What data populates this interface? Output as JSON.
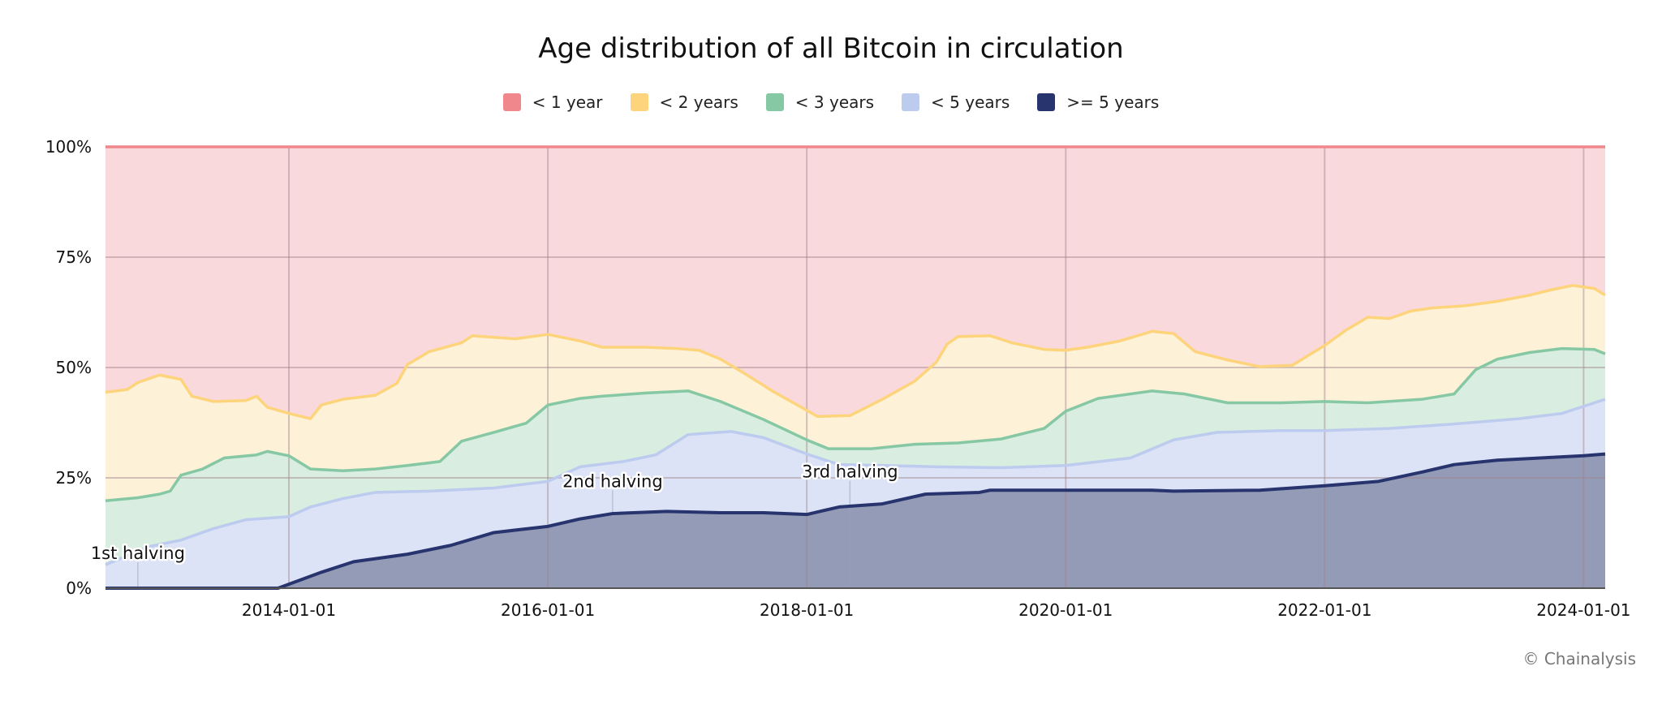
{
  "chart_data": {
    "type": "area",
    "stacking": "percent",
    "title": "Age distribution of all Bitcoin in circulation",
    "xlabel": "",
    "ylabel": "",
    "x_type": "date",
    "xlim": [
      "2012-08",
      "2024-03"
    ],
    "ylim": [
      0,
      100
    ],
    "y_ticks": [
      "0%",
      "25%",
      "50%",
      "75%",
      "100%"
    ],
    "x_ticks": [
      "2014-01-01",
      "2016-01-01",
      "2018-01-01",
      "2020-01-01",
      "2022-01-01",
      "2024-01-01"
    ],
    "grid": true,
    "legend_position": "top-center",
    "legend": [
      {
        "label": "< 1 year",
        "color": "#f0878c",
        "fill": "#f9d9dc"
      },
      {
        "label": "< 2 years",
        "color": "#fdd47c",
        "fill": "#fdf1d8"
      },
      {
        "label": "< 3 years",
        "color": "#86c8a4",
        "fill": "#d9ede1"
      },
      {
        "label": "< 5 years",
        "color": "#bccbee",
        "fill": "#dde3f6"
      },
      {
        "label": ">= 5 years",
        "color": "#27346e",
        "fill": "#949bb7"
      }
    ],
    "series": [
      {
        "name": "< 1 year",
        "points": [
          [
            "2012-08",
            100
          ],
          [
            "2024-03",
            100
          ]
        ]
      },
      {
        "name": "< 2 years",
        "points": [
          [
            "2012-08",
            44.4
          ],
          [
            "2012-10",
            45
          ],
          [
            "2012-11",
            46.6
          ],
          [
            "2013-01",
            48.3
          ],
          [
            "2013-03",
            47.3
          ],
          [
            "2013-04",
            43.5
          ],
          [
            "2013-06",
            42.3
          ],
          [
            "2013-09",
            42.5
          ],
          [
            "2013-10",
            43.5
          ],
          [
            "2013-11",
            41
          ],
          [
            "2014-01",
            39.6
          ],
          [
            "2014-03",
            38.4
          ],
          [
            "2014-04",
            41.5
          ],
          [
            "2014-06",
            42.8
          ],
          [
            "2014-09",
            43.7
          ],
          [
            "2014-11",
            46.4
          ],
          [
            "2014-12",
            50.7
          ],
          [
            "2015-02",
            53.6
          ],
          [
            "2015-05",
            55.6
          ],
          [
            "2015-06",
            57.2
          ],
          [
            "2015-10",
            56.5
          ],
          [
            "2016-01",
            57.5
          ],
          [
            "2016-04",
            56
          ],
          [
            "2016-06",
            54.6
          ],
          [
            "2016-10",
            54.6
          ],
          [
            "2017-01",
            54.3
          ],
          [
            "2017-03",
            53.9
          ],
          [
            "2017-05",
            51.9
          ],
          [
            "2017-07",
            49
          ],
          [
            "2017-10",
            44.4
          ],
          [
            "2018-01",
            40.3
          ],
          [
            "2018-02",
            38.9
          ],
          [
            "2018-05",
            39.1
          ],
          [
            "2018-08",
            42.8
          ],
          [
            "2018-11",
            46.9
          ],
          [
            "2019-01",
            51.2
          ],
          [
            "2019-02",
            55.3
          ],
          [
            "2019-03",
            57
          ],
          [
            "2019-06",
            57.2
          ],
          [
            "2019-08",
            55.6
          ],
          [
            "2019-11",
            54.1
          ],
          [
            "2020-01",
            53.9
          ],
          [
            "2020-03",
            54.6
          ],
          [
            "2020-06",
            56
          ],
          [
            "2020-09",
            58.2
          ],
          [
            "2020-11",
            57.7
          ],
          [
            "2021-01",
            53.6
          ],
          [
            "2021-04",
            51.7
          ],
          [
            "2021-07",
            50.2
          ],
          [
            "2021-10",
            50.5
          ],
          [
            "2022-01",
            55
          ],
          [
            "2022-03",
            58.5
          ],
          [
            "2022-05",
            61.4
          ],
          [
            "2022-07",
            61.1
          ],
          [
            "2022-09",
            62.8
          ],
          [
            "2022-11",
            63.5
          ],
          [
            "2023-02",
            64
          ],
          [
            "2023-05",
            65
          ],
          [
            "2023-08",
            66.4
          ],
          [
            "2023-10",
            67.6
          ],
          [
            "2023-12",
            68.6
          ],
          [
            "2024-02",
            67.9
          ],
          [
            "2024-03",
            66.4
          ]
        ]
      },
      {
        "name": "< 3 years",
        "points": [
          [
            "2012-08",
            19.8
          ],
          [
            "2012-11",
            20.5
          ],
          [
            "2013-01",
            21.3
          ],
          [
            "2013-02",
            22
          ],
          [
            "2013-03",
            25.6
          ],
          [
            "2013-05",
            27
          ],
          [
            "2013-07",
            29.5
          ],
          [
            "2013-10",
            30.2
          ],
          [
            "2013-11",
            31
          ],
          [
            "2014-01",
            30
          ],
          [
            "2014-03",
            27
          ],
          [
            "2014-06",
            26.6
          ],
          [
            "2014-09",
            27
          ],
          [
            "2014-12",
            27.8
          ],
          [
            "2015-03",
            28.7
          ],
          [
            "2015-05",
            33.3
          ],
          [
            "2015-08",
            35.3
          ],
          [
            "2015-11",
            37.4
          ],
          [
            "2016-01",
            41.5
          ],
          [
            "2016-04",
            43
          ],
          [
            "2016-06",
            43.5
          ],
          [
            "2016-10",
            44.2
          ],
          [
            "2017-02",
            44.7
          ],
          [
            "2017-05",
            42.3
          ],
          [
            "2017-09",
            38.2
          ],
          [
            "2018-01",
            33.6
          ],
          [
            "2018-03",
            31.6
          ],
          [
            "2018-07",
            31.6
          ],
          [
            "2018-11",
            32.6
          ],
          [
            "2019-03",
            32.9
          ],
          [
            "2019-07",
            33.8
          ],
          [
            "2019-11",
            36.2
          ],
          [
            "2020-01",
            40.1
          ],
          [
            "2020-04",
            43
          ],
          [
            "2020-09",
            44.7
          ],
          [
            "2020-12",
            44
          ],
          [
            "2021-04",
            42
          ],
          [
            "2021-09",
            42
          ],
          [
            "2022-01",
            42.3
          ],
          [
            "2022-05",
            42
          ],
          [
            "2022-10",
            42.8
          ],
          [
            "2023-01",
            44
          ],
          [
            "2023-03",
            49.5
          ],
          [
            "2023-05",
            51.9
          ],
          [
            "2023-08",
            53.4
          ],
          [
            "2023-11",
            54.3
          ],
          [
            "2024-02",
            54.1
          ],
          [
            "2024-03",
            53.1
          ]
        ]
      },
      {
        "name": "< 5 years",
        "points": [
          [
            "2012-08",
            5.3
          ],
          [
            "2012-12",
            9.4
          ],
          [
            "2013-03",
            10.9
          ],
          [
            "2013-06",
            13.5
          ],
          [
            "2013-09",
            15.5
          ],
          [
            "2014-01",
            16.2
          ],
          [
            "2014-03",
            18.4
          ],
          [
            "2014-06",
            20.3
          ],
          [
            "2014-09",
            21.7
          ],
          [
            "2015-02",
            22
          ],
          [
            "2015-08",
            22.7
          ],
          [
            "2016-01",
            24.2
          ],
          [
            "2016-04",
            27.5
          ],
          [
            "2016-08",
            28.7
          ],
          [
            "2016-11",
            30.2
          ],
          [
            "2017-02",
            34.8
          ],
          [
            "2017-06",
            35.5
          ],
          [
            "2017-09",
            34.1
          ],
          [
            "2018-01",
            30.4
          ],
          [
            "2018-04",
            28
          ],
          [
            "2018-08",
            27.8
          ],
          [
            "2019-01",
            27.5
          ],
          [
            "2019-07",
            27.3
          ],
          [
            "2020-01",
            27.8
          ],
          [
            "2020-07",
            29.5
          ],
          [
            "2020-11",
            33.6
          ],
          [
            "2021-03",
            35.3
          ],
          [
            "2021-09",
            35.7
          ],
          [
            "2022-01",
            35.7
          ],
          [
            "2022-07",
            36.2
          ],
          [
            "2023-01",
            37.2
          ],
          [
            "2023-07",
            38.4
          ],
          [
            "2023-11",
            39.6
          ],
          [
            "2024-02",
            42
          ],
          [
            "2024-03",
            42.8
          ]
        ]
      },
      {
        "name": ">= 5 years",
        "points": [
          [
            "2012-08",
            0
          ],
          [
            "2013-12",
            0
          ],
          [
            "2014-04",
            3.6
          ],
          [
            "2014-07",
            6
          ],
          [
            "2014-12",
            7.7
          ],
          [
            "2015-04",
            9.7
          ],
          [
            "2015-08",
            12.6
          ],
          [
            "2016-01",
            14
          ],
          [
            "2016-04",
            15.7
          ],
          [
            "2016-07",
            16.9
          ],
          [
            "2016-12",
            17.4
          ],
          [
            "2017-05",
            17.1
          ],
          [
            "2017-09",
            17.1
          ],
          [
            "2018-01",
            16.7
          ],
          [
            "2018-04",
            18.4
          ],
          [
            "2018-08",
            19.1
          ],
          [
            "2018-12",
            21.3
          ],
          [
            "2019-05",
            21.7
          ],
          [
            "2019-06",
            22.2
          ],
          [
            "2020-01",
            22.2
          ],
          [
            "2020-09",
            22.2
          ],
          [
            "2020-11",
            22
          ],
          [
            "2021-07",
            22.2
          ],
          [
            "2022-01",
            23.2
          ],
          [
            "2022-06",
            24.2
          ],
          [
            "2022-10",
            26.3
          ],
          [
            "2023-01",
            28
          ],
          [
            "2023-05",
            29
          ],
          [
            "2023-09",
            29.5
          ],
          [
            "2024-01",
            30
          ],
          [
            "2024-03",
            30.4
          ]
        ]
      }
    ],
    "annotations": [
      {
        "label": "1st halving",
        "date": "2012-11",
        "y": 7.7
      },
      {
        "label": "2nd halving",
        "date": "2016-07",
        "y": 24
      },
      {
        "label": "3rd halving",
        "date": "2018-05",
        "y": 26.2
      }
    ],
    "credit": "© Chainalysis"
  }
}
